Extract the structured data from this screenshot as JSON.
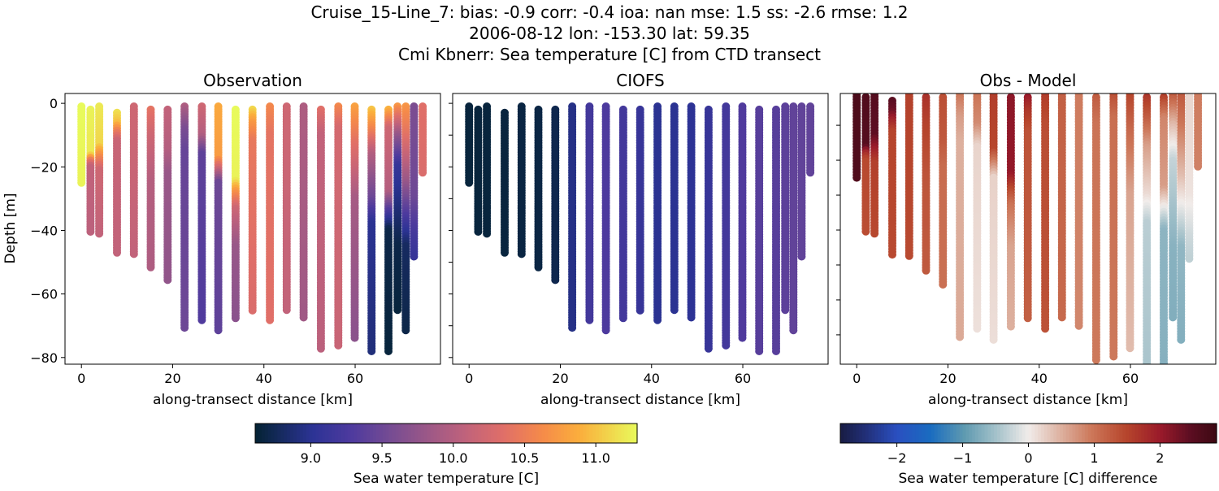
{
  "suptitle": {
    "line1": "Cruise_15-Line_7: bias: -0.9  corr: -0.4  ioa: nan  mse: 1.5  ss: -2.6  rmse: 1.2",
    "line2": "2006-08-12 lon: -153.30 lat: 59.35",
    "line3": "Cmi Kbnerr: Sea temperature [C] from CTD transect"
  },
  "chart_data": [
    {
      "type": "scatter",
      "title": "Observation",
      "xlabel": "along-transect distance [km]",
      "ylabel": "Depth [m]",
      "xlim": [
        -3.6,
        78.7
      ],
      "ylim": [
        -82.1,
        3.1
      ],
      "xticks": [
        "0",
        "20",
        "40",
        "60"
      ],
      "yticks": [
        "0",
        "−20",
        "−40",
        "−60",
        "−80"
      ],
      "colormap": "thermal",
      "casts": [
        {
          "x": 0.0,
          "top": -1,
          "bottom": -25.2,
          "temp": [
            [
              -1,
              11.3
            ],
            [
              -25.2,
              11.25
            ]
          ]
        },
        {
          "x": 2.0,
          "top": -2,
          "bottom": -41.0,
          "temp": [
            [
              -2,
              11.25
            ],
            [
              -16,
              11.2
            ],
            [
              -18,
              10.5
            ],
            [
              -20,
              10.1
            ],
            [
              -41,
              10.05
            ]
          ]
        },
        {
          "x": 3.9,
          "top": -1,
          "bottom": -41.7,
          "temp": [
            [
              -1,
              11.2
            ],
            [
              -13,
              11.1
            ],
            [
              -17,
              10.6
            ],
            [
              -21,
              10.2
            ],
            [
              -41.7,
              10.1
            ]
          ]
        },
        {
          "x": 7.8,
          "top": -3,
          "bottom": -47.0,
          "temp": [
            [
              -3,
              11.15
            ],
            [
              -6,
              11.0
            ],
            [
              -9,
              10.5
            ],
            [
              -12,
              10.15
            ],
            [
              -47,
              10.1
            ]
          ]
        },
        {
          "x": 11.5,
          "top": -1,
          "bottom": -47.8,
          "temp": [
            [
              -1,
              10.2
            ],
            [
              -47.8,
              10.1
            ]
          ]
        },
        {
          "x": 15.2,
          "top": -2,
          "bottom": -52.0,
          "temp": [
            [
              -2,
              10.4
            ],
            [
              -10,
              10.2
            ],
            [
              -25,
              10.0
            ],
            [
              -52,
              9.95
            ]
          ]
        },
        {
          "x": 18.9,
          "top": -2,
          "bottom": -55.9,
          "temp": [
            [
              -2,
              10.1
            ],
            [
              -15,
              10.0
            ],
            [
              -22,
              9.8
            ],
            [
              -55.9,
              9.75
            ]
          ]
        },
        {
          "x": 22.6,
          "top": -1,
          "bottom": -70.6,
          "temp": [
            [
              -1,
              9.95
            ],
            [
              -8,
              9.6
            ],
            [
              -15,
              9.45
            ],
            [
              -70.6,
              9.5
            ]
          ]
        },
        {
          "x": 26.4,
          "top": -1,
          "bottom": -68.5,
          "temp": [
            [
              -1,
              10.2
            ],
            [
              -10,
              10.0
            ],
            [
              -16,
              9.4
            ],
            [
              -68.5,
              9.3
            ]
          ]
        },
        {
          "x": 30.0,
          "top": -1,
          "bottom": -71.5,
          "temp": [
            [
              -1,
              10.85
            ],
            [
              -17,
              10.75
            ],
            [
              -20,
              10.3
            ],
            [
              -25,
              9.5
            ],
            [
              -71.5,
              9.4
            ]
          ]
        },
        {
          "x": 33.8,
          "top": -2,
          "bottom": -67.7,
          "temp": [
            [
              -2,
              11.3
            ],
            [
              -24,
              11.25
            ],
            [
              -28,
              10.7
            ],
            [
              -33,
              10.2
            ],
            [
              -45,
              9.8
            ],
            [
              -67.7,
              9.7
            ]
          ]
        },
        {
          "x": 37.5,
          "top": -2,
          "bottom": -65.7,
          "temp": [
            [
              -2,
              11.1
            ],
            [
              -6,
              10.75
            ],
            [
              -12,
              10.45
            ],
            [
              -65.7,
              10.3
            ]
          ]
        },
        {
          "x": 41.3,
          "top": -1,
          "bottom": -68.5,
          "temp": [
            [
              -1,
              10.6
            ],
            [
              -10,
              10.4
            ],
            [
              -68.5,
              10.35
            ]
          ]
        },
        {
          "x": 45.0,
          "top": -1,
          "bottom": -65.7,
          "temp": [
            [
              -1,
              10.2
            ],
            [
              -65.7,
              10.1
            ]
          ]
        },
        {
          "x": 48.7,
          "top": -1,
          "bottom": -67.7,
          "temp": [
            [
              -1,
              9.95
            ],
            [
              -67.7,
              9.85
            ]
          ]
        },
        {
          "x": 52.5,
          "top": -2,
          "bottom": -77.6,
          "temp": [
            [
              -2,
              10.35
            ],
            [
              -10,
              10.1
            ],
            [
              -77.6,
              10.05
            ]
          ]
        },
        {
          "x": 56.3,
          "top": -1,
          "bottom": -76.6,
          "temp": [
            [
              -1,
              10.6
            ],
            [
              -8,
              10.25
            ],
            [
              -76.6,
              10.15
            ]
          ]
        },
        {
          "x": 59.9,
          "top": -1,
          "bottom": -74.4,
          "temp": [
            [
              -1,
              10.8
            ],
            [
              -12,
              10.4
            ],
            [
              -30,
              9.9
            ],
            [
              -74.4,
              9.7
            ]
          ]
        },
        {
          "x": 63.6,
          "top": -2,
          "bottom": -78.5,
          "temp": [
            [
              -2,
              11.0
            ],
            [
              -8,
              10.6
            ],
            [
              -16,
              10.0
            ],
            [
              -30,
              9.5
            ],
            [
              -38,
              9.0
            ],
            [
              -78.5,
              8.9
            ]
          ]
        },
        {
          "x": 67.3,
          "top": -2,
          "bottom": -78.5,
          "temp": [
            [
              -2,
              10.9
            ],
            [
              -8,
              10.2
            ],
            [
              -28,
              10.0
            ],
            [
              -34,
              9.3
            ],
            [
              -40,
              8.7
            ],
            [
              -78.5,
              8.65
            ]
          ]
        },
        {
          "x": 69.3,
          "top": -1,
          "bottom": -65.7,
          "temp": [
            [
              -1,
              10.7
            ],
            [
              -10,
              9.8
            ],
            [
              -20,
              9.1
            ],
            [
              -30,
              8.95
            ],
            [
              -45,
              8.7
            ],
            [
              -65.7,
              8.65
            ]
          ]
        },
        {
          "x": 71.1,
          "top": -1,
          "bottom": -71.5,
          "temp": [
            [
              -1,
              10.7
            ],
            [
              -10,
              10.4
            ],
            [
              -25,
              9.8
            ],
            [
              -35,
              9.3
            ],
            [
              -45,
              8.8
            ],
            [
              -71.5,
              8.7
            ]
          ]
        },
        {
          "x": 72.9,
          "top": -1,
          "bottom": -48.6,
          "temp": [
            [
              -1,
              9.6
            ],
            [
              -30,
              9.5
            ],
            [
              -42,
              9.2
            ],
            [
              -48.6,
              9.1
            ]
          ]
        },
        {
          "x": 74.8,
          "top": -1,
          "bottom": -22.0,
          "temp": [
            [
              -1,
              10.35
            ],
            [
              -22,
              10.3
            ]
          ]
        }
      ]
    },
    {
      "type": "scatter",
      "title": "CIOFS",
      "xlabel": "along-transect distance [km]",
      "xlim": [
        -3.6,
        78.7
      ],
      "ylim": [
        -82.1,
        3.1
      ],
      "xticks": [
        "0",
        "20",
        "40",
        "60"
      ],
      "colormap": "thermal",
      "model_temp": [
        8.65,
        8.65,
        8.65,
        8.66,
        8.67,
        8.68,
        8.72,
        8.95,
        9.2,
        9.28,
        9.2,
        9.1,
        9.0,
        9.0,
        9.02,
        9.1,
        9.2,
        9.3,
        9.35,
        9.35,
        9.38,
        9.42,
        9.42,
        9.42
      ]
    },
    {
      "type": "scatter",
      "title": "Obs - Model",
      "xlabel": "along-transect distance [km]",
      "xlim": [
        -3.6,
        78.7
      ],
      "ylim": [
        -78.4,
        -0.9
      ],
      "xticks": [
        "0",
        "20",
        "40",
        "60"
      ],
      "colormap": "balance",
      "value": "obs minus model"
    }
  ],
  "colorbars": [
    {
      "label": "Sea water temperature [C]",
      "range": [
        8.61,
        11.29
      ],
      "ticks": [
        "9.0",
        "9.5",
        "10.0",
        "10.5",
        "11.0"
      ],
      "tick_values": [
        9.0,
        9.5,
        10.0,
        10.5,
        11.0
      ]
    },
    {
      "label": "Sea water temperature [C] difference",
      "range": [
        -2.86,
        2.86
      ],
      "ticks": [
        "−2",
        "−1",
        "0",
        "1",
        "2"
      ],
      "tick_values": [
        -2,
        -1,
        0,
        1,
        2
      ]
    }
  ]
}
